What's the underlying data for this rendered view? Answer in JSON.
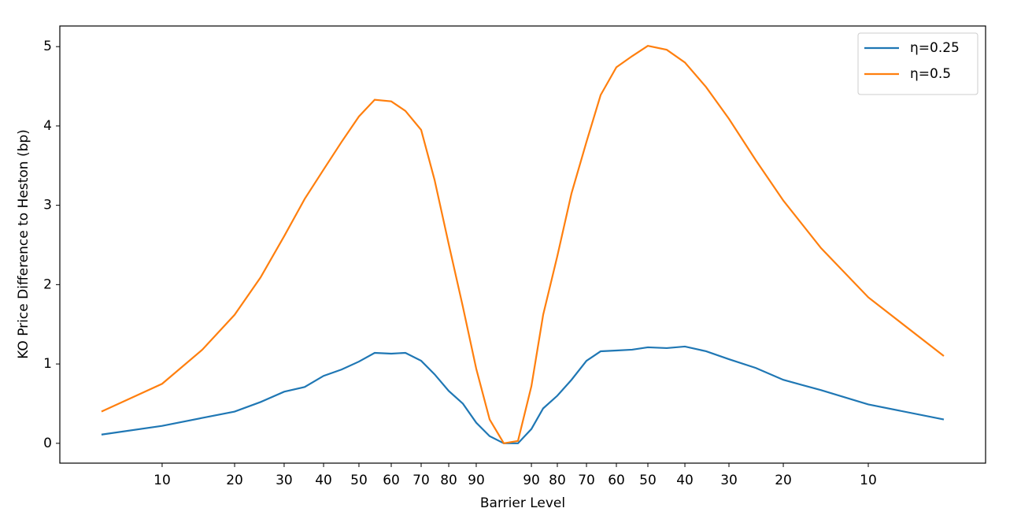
{
  "chart_data": {
    "type": "line",
    "xlabel": "Barrier Level",
    "ylabel": "KO Price Difference to Heston (bp)",
    "x": [
      4.5,
      11.05,
      15.39,
      18.88,
      21.68,
      24.23,
      26.45,
      28.49,
      30.44,
      32.31,
      34.01,
      35.8,
      37.33,
      39.03,
      40.48,
      42.01,
      43.54,
      44.98,
      46.43,
      47.96,
      49.49,
      50.94,
      52.21,
      53.74,
      55.27,
      56.89,
      58.42,
      60.12,
      61.82,
      63.52,
      65.56,
      67.52,
      69.81,
      72.28,
      75.17,
      78.15,
      82.23,
      87.33,
      95.49
    ],
    "series": [
      {
        "name": "η=0.25",
        "color": "#1f77b4",
        "values": [
          0.11,
          0.22,
          0.32,
          0.4,
          0.52,
          0.65,
          0.71,
          0.85,
          0.93,
          1.03,
          1.14,
          1.13,
          1.14,
          1.04,
          0.87,
          0.66,
          0.5,
          0.26,
          0.09,
          0.0,
          0.0,
          0.18,
          0.44,
          0.6,
          0.8,
          1.04,
          1.16,
          1.17,
          1.18,
          1.21,
          1.2,
          1.22,
          1.16,
          1.06,
          0.95,
          0.8,
          0.67,
          0.49,
          0.3
        ]
      },
      {
        "name": "η=0.5",
        "color": "#ff7f0e",
        "values": [
          0.4,
          0.75,
          1.18,
          1.62,
          2.09,
          2.61,
          3.08,
          3.45,
          3.8,
          4.12,
          4.33,
          4.31,
          4.19,
          3.95,
          3.32,
          2.51,
          1.72,
          0.94,
          0.3,
          0.0,
          0.03,
          0.72,
          1.62,
          2.36,
          3.15,
          3.8,
          4.39,
          4.74,
          4.88,
          5.01,
          4.96,
          4.8,
          4.49,
          4.09,
          3.57,
          3.06,
          2.46,
          1.84,
          1.1
        ]
      }
    ],
    "xlim": [
      0,
      100
    ],
    "ylim": [
      -0.25,
      5.26
    ],
    "xticks": [
      {
        "value": 11.05,
        "label": "10"
      },
      {
        "value": 18.88,
        "label": "20"
      },
      {
        "value": 24.23,
        "label": "30"
      },
      {
        "value": 28.49,
        "label": "40"
      },
      {
        "value": 32.31,
        "label": "50"
      },
      {
        "value": 35.8,
        "label": "60"
      },
      {
        "value": 39.03,
        "label": "70"
      },
      {
        "value": 42.01,
        "label": "80"
      },
      {
        "value": 44.98,
        "label": "90"
      },
      {
        "value": 50.94,
        "label": "90"
      },
      {
        "value": 53.74,
        "label": "80"
      },
      {
        "value": 56.89,
        "label": "70"
      },
      {
        "value": 60.12,
        "label": "60"
      },
      {
        "value": 63.52,
        "label": "50"
      },
      {
        "value": 67.52,
        "label": "40"
      },
      {
        "value": 72.28,
        "label": "30"
      },
      {
        "value": 78.15,
        "label": "20"
      },
      {
        "value": 87.33,
        "label": "10"
      }
    ],
    "yticks": [
      0,
      1,
      2,
      3,
      4,
      5
    ],
    "legend": "upper right",
    "grid": false
  }
}
